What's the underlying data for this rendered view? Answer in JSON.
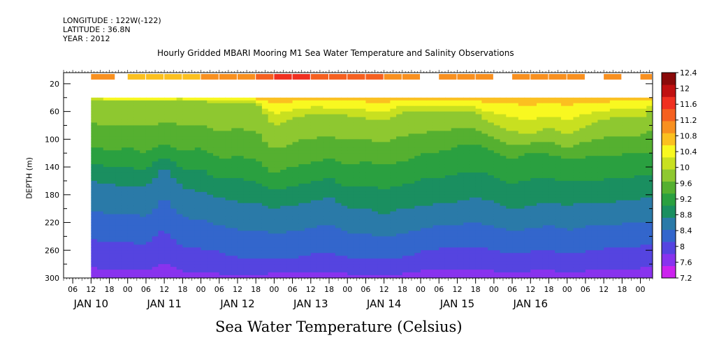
{
  "header": {
    "longitude": "LONGITUDE : 122W(-122)",
    "latitude": "LATITUDE : 36.8N",
    "year": "YEAR : 2012"
  },
  "chart_data": {
    "type": "heatmap",
    "title": "Hourly Gridded MBARI Mooring M1 Sea Water Temperature and Salinity Observations",
    "xlabel": "",
    "ylabel": "DEPTH (m)",
    "colorbar_label": "Sea Water Temperature (Celsius)",
    "x_hour_ticks": [
      "06",
      "12",
      "18",
      "00",
      "06",
      "12",
      "18",
      "00",
      "06",
      "12",
      "18",
      "00",
      "06",
      "12",
      "18",
      "00",
      "06",
      "12",
      "18",
      "00",
      "06",
      "12",
      "18",
      "00",
      "06",
      "12",
      "18",
      "00",
      "06",
      "12",
      "18",
      "00"
    ],
    "x_day_labels": [
      "JAN 10",
      "JAN 11",
      "JAN 12",
      "JAN 13",
      "JAN 14",
      "JAN 15",
      "JAN 16"
    ],
    "x_range_hours_since_jan10_00": [
      3,
      196
    ],
    "data_start_hour": 12,
    "y_ticks": [
      20,
      60,
      100,
      140,
      180,
      220,
      260,
      300
    ],
    "ylim": [
      300,
      4
    ],
    "surface_bin_depth": 10,
    "top_contour_depth": 40,
    "colorbar_levels": [
      7.2,
      7.6,
      8,
      8.4,
      8.8,
      9.2,
      9.6,
      10,
      10.4,
      10.8,
      11.2,
      11.6,
      12,
      12.4
    ],
    "colorbar_tick_labels": [
      "12.4",
      "12",
      "11.6",
      "11.2",
      "10.8",
      "10.4",
      "10",
      "9.6",
      "9.2",
      "8.8",
      "8.4",
      "8",
      "7.6",
      "7.2"
    ],
    "colors": [
      "#cc22ee",
      "#8833ee",
      "#5544e0",
      "#3366cc",
      "#2a7aa8",
      "#1a8f60",
      "#2aa040",
      "#55b030",
      "#8ec830",
      "#c8e020",
      "#f8f820",
      "#fbc020",
      "#f89020",
      "#f56020",
      "#f03020",
      "#c01010",
      "#8a0a0a"
    ],
    "surface_temperature_series": {
      "hours": [
        12,
        20,
        24,
        30,
        36,
        42,
        48,
        54,
        60,
        66,
        72,
        78,
        84,
        90,
        96,
        102,
        108,
        114,
        120,
        126,
        132,
        138,
        144,
        150,
        156,
        162,
        168,
        174,
        180,
        186,
        192,
        196
      ],
      "values": [
        11.6,
        null,
        11.4,
        11.5,
        11.5,
        11.4,
        11.6,
        11.7,
        11.7,
        12.2,
        12.5,
        12.4,
        12.2,
        12.2,
        12.0,
        12.0,
        11.9,
        11.9,
        null,
        11.9,
        11.8,
        11.8,
        null,
        11.9,
        11.8,
        11.8,
        11.9,
        null,
        11.6,
        null,
        11.8,
        11.6
      ]
    },
    "isotherm_depths": {
      "hours": [
        12,
        18,
        24,
        30,
        36,
        42,
        48,
        54,
        60,
        66,
        72,
        78,
        84,
        90,
        96,
        102,
        108,
        114,
        120,
        126,
        132,
        138,
        144,
        150,
        156,
        162,
        168,
        174,
        180,
        186,
        192,
        196
      ],
      "series": [
        {
          "level": 10.4,
          "depths": [
            42,
            44,
            45,
            44,
            44,
            43,
            45,
            50,
            46,
            48,
            80,
            70,
            62,
            64,
            66,
            70,
            72,
            60,
            62,
            58,
            60,
            62,
            78,
            88,
            92,
            82,
            96,
            80,
            72,
            66,
            70,
            58
          ]
        },
        {
          "level": 9.6,
          "depths": [
            110,
            116,
            112,
            120,
            105,
            118,
            112,
            128,
            124,
            130,
            150,
            140,
            135,
            128,
            138,
            132,
            136,
            132,
            120,
            118,
            110,
            108,
            116,
            130,
            120,
            122,
            128,
            126,
            124,
            122,
            120,
            118
          ]
        },
        {
          "level": 8.8,
          "depths": [
            160,
            165,
            168,
            170,
            140,
            170,
            175,
            185,
            190,
            192,
            200,
            195,
            190,
            182,
            200,
            200,
            210,
            200,
            196,
            192,
            190,
            184,
            190,
            200,
            196,
            190,
            196,
            190,
            192,
            188,
            186,
            184
          ]
        },
        {
          "level": 8.0,
          "depths": [
            245,
            250,
            248,
            252,
            230,
            255,
            258,
            262,
            270,
            272,
            270,
            272,
            266,
            262,
            270,
            272,
            274,
            270,
            262,
            258,
            256,
            254,
            260,
            266,
            262,
            258,
            266,
            262,
            258,
            256,
            254,
            252
          ]
        },
        {
          "level": 7.6,
          "depths": [
            285,
            288,
            286,
            290,
            280,
            290,
            292,
            294,
            296,
            298,
            292,
            294,
            292,
            290,
            294,
            296,
            296,
            294,
            290,
            288,
            288,
            286,
            290,
            292,
            290,
            288,
            292,
            290,
            288,
            287,
            286,
            285
          ]
        }
      ]
    }
  }
}
